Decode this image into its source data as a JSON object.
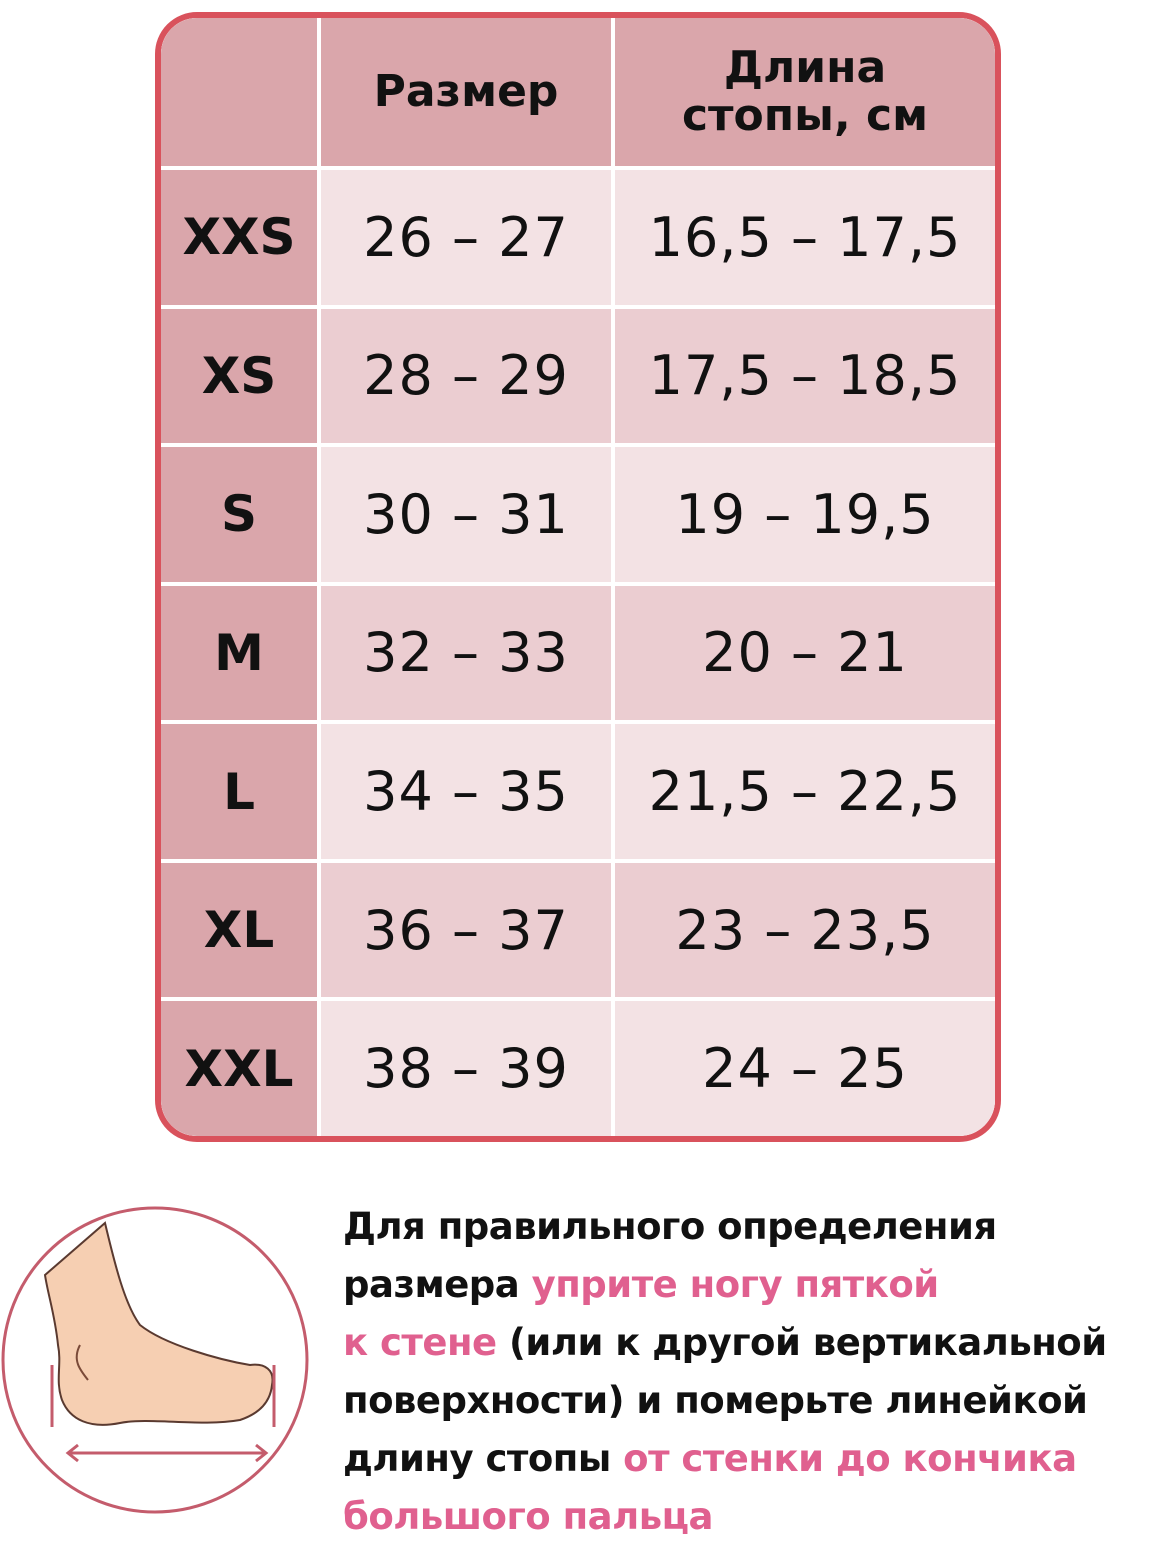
{
  "header": {
    "col_size": "Размер",
    "col_length": "Длина стопы, см"
  },
  "rows": [
    {
      "label": "XXS",
      "size": "26 – 27",
      "length": "16,5 – 17,5"
    },
    {
      "label": "XS",
      "size": "28 – 29",
      "length": "17,5 – 18,5"
    },
    {
      "label": "S",
      "size": "30 – 31",
      "length": "19 – 19,5"
    },
    {
      "label": "M",
      "size": "32 – 33",
      "length": "20 – 21"
    },
    {
      "label": "L",
      "size": "34 – 35",
      "length": "21,5 – 22,5"
    },
    {
      "label": "XL",
      "size": "36 – 37",
      "length": "23 – 23,5"
    },
    {
      "label": "XXL",
      "size": "38 – 39",
      "length": "24 – 25"
    }
  ],
  "instructions": {
    "line1": "Для правильного определения",
    "line2_a": "размера ",
    "line2_b": "уприте ногу пяткой",
    "line3_a": "к стене",
    "line3_b": " (или к другой вертикальной",
    "line4": "поверхности) и померьте линейкой",
    "line5_a": "длину стопы ",
    "line5_b": "от стенки до кончика",
    "line6": "большого пальца"
  },
  "icon": "foot-measurement-icon",
  "colors": {
    "border": "#d9525c",
    "header": "#daa6ab",
    "row_light": "#f3e2e4",
    "row_dark": "#ebcdd1",
    "highlight": "#e0608f"
  }
}
